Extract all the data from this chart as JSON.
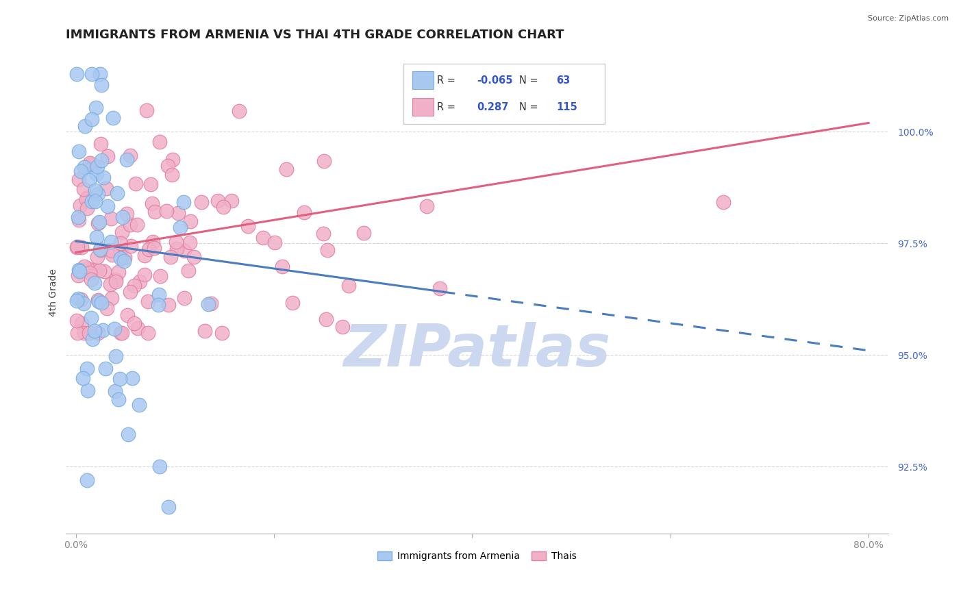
{
  "title": "IMMIGRANTS FROM ARMENIA VS THAI 4TH GRADE CORRELATION CHART",
  "source_text": "Source: ZipAtlas.com",
  "ylabel": "4th Grade",
  "xlim": [
    -1.0,
    82.0
  ],
  "ylim": [
    91.0,
    101.8
  ],
  "yticks": [
    92.5,
    95.0,
    97.5,
    100.0
  ],
  "ytick_labels": [
    "92.5%",
    "95.0%",
    "97.5%",
    "100.0%"
  ],
  "xticks": [
    0.0,
    20.0,
    40.0,
    60.0,
    80.0
  ],
  "xtick_labels": [
    "0.0%",
    "",
    "",
    "",
    "80.0%"
  ],
  "armenia_R": -0.065,
  "armenia_N": 63,
  "thai_R": 0.287,
  "thai_N": 115,
  "armenia_color": "#a8c8f0",
  "armenia_edge": "#7aaee0",
  "thai_color": "#f0b0c8",
  "thai_edge": "#e080a0",
  "armenia_line_color": "#4a7cc0",
  "thai_line_color": "#e06080",
  "ytick_color": "#4466cc",
  "xtick_color": "#888888",
  "legend_R_color": "#3355cc",
  "legend_label_color": "#333333",
  "watermark_color": "#ccd8ef",
  "background_color": "#ffffff",
  "grid_color": "#cccccc",
  "title_fontsize": 13,
  "axis_label_fontsize": 10,
  "tick_fontsize": 10,
  "arm_line_x0": 0,
  "arm_line_y0": 97.55,
  "arm_line_x1": 80,
  "arm_line_y1": 95.1,
  "arm_solid_end_x": 37,
  "thai_line_x0": 0,
  "thai_line_y0": 97.3,
  "thai_line_x1": 80,
  "thai_line_y1": 100.2
}
